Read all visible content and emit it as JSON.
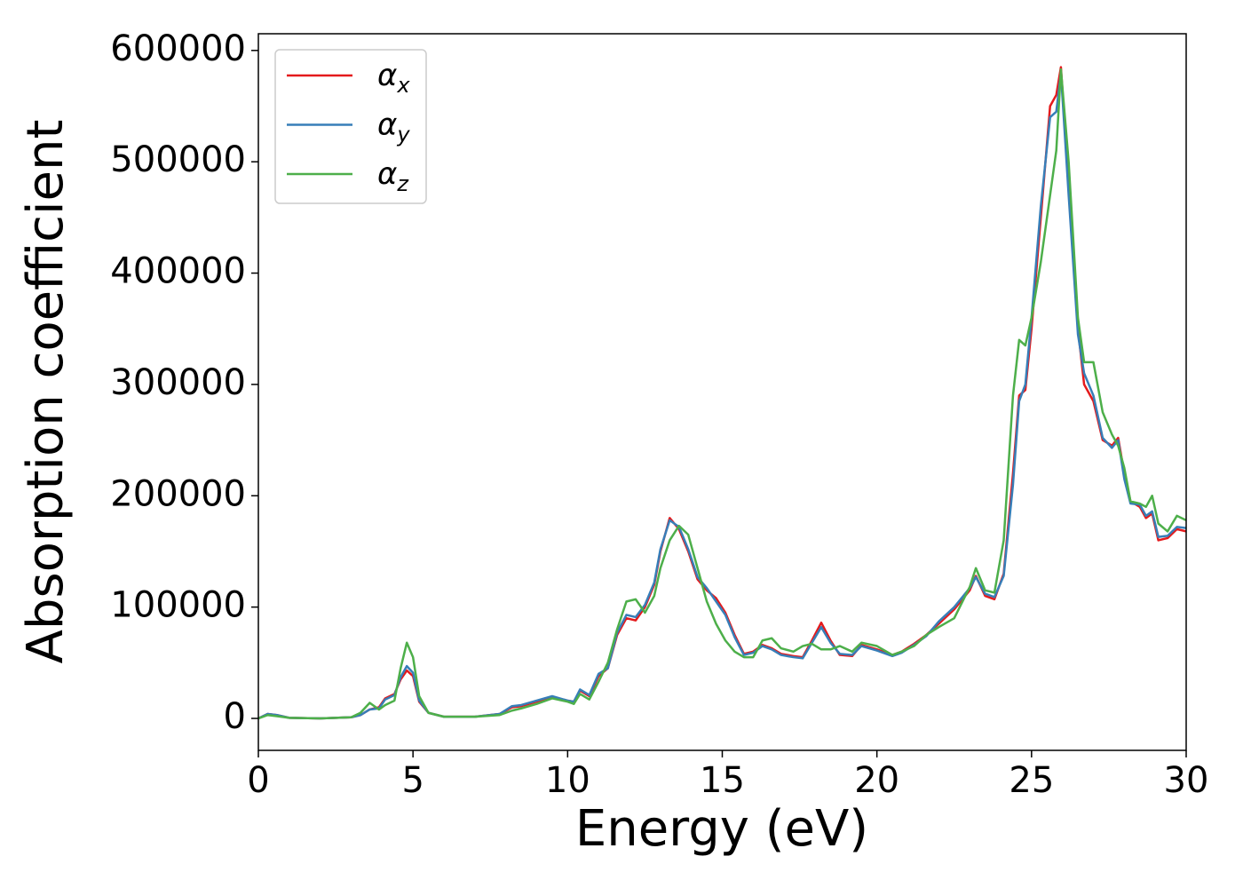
{
  "chart_data": {
    "type": "line",
    "xlabel": "Energy (eV)",
    "ylabel": "Absorption coefficient",
    "xlim": [
      0,
      30
    ],
    "ylim": [
      -28700,
      615000
    ],
    "xticks": [
      0,
      5,
      10,
      15,
      20,
      25,
      30
    ],
    "yticks": [
      0,
      100000,
      200000,
      300000,
      400000,
      500000,
      600000
    ],
    "legend": "upper left",
    "x": [
      0,
      0.3,
      0.6,
      1,
      2,
      3,
      3.3,
      3.6,
      3.9,
      4.1,
      4.4,
      4.6,
      4.8,
      5,
      5.2,
      5.5,
      6,
      7,
      7.8,
      8.2,
      8.5,
      9,
      9.5,
      10,
      10.2,
      10.4,
      10.7,
      11,
      11.3,
      11.6,
      11.9,
      12.2,
      12.5,
      12.8,
      13,
      13.3,
      13.6,
      13.9,
      14.2,
      14.5,
      14.8,
      15.1,
      15.4,
      15.7,
      16,
      16.3,
      16.6,
      16.9,
      17.3,
      17.6,
      17.9,
      18.2,
      18.5,
      18.8,
      19.2,
      19.5,
      20,
      20.5,
      20.8,
      21.2,
      21.6,
      22,
      22.5,
      23,
      23.2,
      23.5,
      23.8,
      24.1,
      24.4,
      24.6,
      24.8,
      25,
      25.3,
      25.6,
      25.8,
      25.95,
      26.2,
      26.5,
      26.7,
      27,
      27.3,
      27.6,
      27.8,
      28,
      28.2,
      28.5,
      28.7,
      28.9,
      29.1,
      29.4,
      29.7,
      30
    ],
    "series": [
      {
        "name": "αx",
        "color": "#e41a1c",
        "values": [
          0,
          4000,
          3000,
          500,
          0,
          1000,
          3000,
          8000,
          10000,
          18000,
          22000,
          35000,
          43000,
          38000,
          15000,
          5000,
          1500,
          1500,
          4000,
          10000,
          11000,
          15000,
          19000,
          16000,
          15000,
          25000,
          20000,
          38000,
          45000,
          75000,
          90000,
          88000,
          100000,
          120000,
          150000,
          180000,
          170000,
          150000,
          125000,
          115000,
          108000,
          95000,
          75000,
          58000,
          60000,
          66000,
          63000,
          58000,
          56000,
          55000,
          70000,
          86000,
          70000,
          57000,
          56000,
          66000,
          62000,
          57000,
          60000,
          67000,
          75000,
          85000,
          98000,
          115000,
          128000,
          110000,
          107000,
          130000,
          220000,
          290000,
          295000,
          350000,
          450000,
          550000,
          560000,
          585000,
          480000,
          350000,
          300000,
          285000,
          250000,
          245000,
          252000,
          220000,
          195000,
          190000,
          180000,
          184000,
          160000,
          162000,
          170000,
          168000
        ]
      },
      {
        "name": "αy",
        "color": "#377eb8",
        "values": [
          0,
          4000,
          3000,
          500,
          0,
          1000,
          3000,
          8000,
          9000,
          17000,
          21000,
          37000,
          47000,
          41000,
          16000,
          5000,
          1500,
          1500,
          4000,
          11000,
          12000,
          16000,
          20000,
          16000,
          15000,
          26000,
          21000,
          40000,
          45000,
          77000,
          93000,
          91000,
          102000,
          122000,
          152000,
          178000,
          172000,
          152000,
          127000,
          117000,
          105000,
          93000,
          73000,
          57000,
          59000,
          65000,
          62000,
          57000,
          55000,
          54000,
          68000,
          82000,
          68000,
          58000,
          57000,
          65000,
          61000,
          56000,
          59000,
          66000,
          74000,
          87000,
          100000,
          117000,
          127000,
          112000,
          109000,
          128000,
          210000,
          285000,
          300000,
          360000,
          460000,
          540000,
          545000,
          580000,
          470000,
          345000,
          310000,
          290000,
          252000,
          243000,
          250000,
          215000,
          193000,
          192000,
          182000,
          186000,
          163000,
          164000,
          172000,
          171000
        ]
      },
      {
        "name": "αz",
        "color": "#4daf4a",
        "values": [
          0,
          3000,
          2000,
          500,
          0,
          1000,
          5000,
          14000,
          8000,
          12000,
          16000,
          45000,
          68000,
          55000,
          20000,
          5000,
          1500,
          1500,
          3000,
          7000,
          9000,
          13000,
          18000,
          15000,
          13000,
          22000,
          17000,
          33000,
          50000,
          80000,
          105000,
          107000,
          95000,
          110000,
          135000,
          160000,
          173000,
          165000,
          135000,
          105000,
          85000,
          70000,
          60000,
          55000,
          55000,
          70000,
          72000,
          63000,
          60000,
          65000,
          67000,
          62000,
          62000,
          65000,
          60000,
          68000,
          65000,
          57000,
          60000,
          65000,
          75000,
          82000,
          90000,
          118000,
          135000,
          115000,
          113000,
          160000,
          290000,
          340000,
          335000,
          360000,
          410000,
          470000,
          510000,
          583000,
          500000,
          360000,
          320000,
          320000,
          275000,
          255000,
          245000,
          225000,
          195000,
          193000,
          190000,
          200000,
          175000,
          168000,
          182000,
          178000
        ]
      }
    ]
  }
}
